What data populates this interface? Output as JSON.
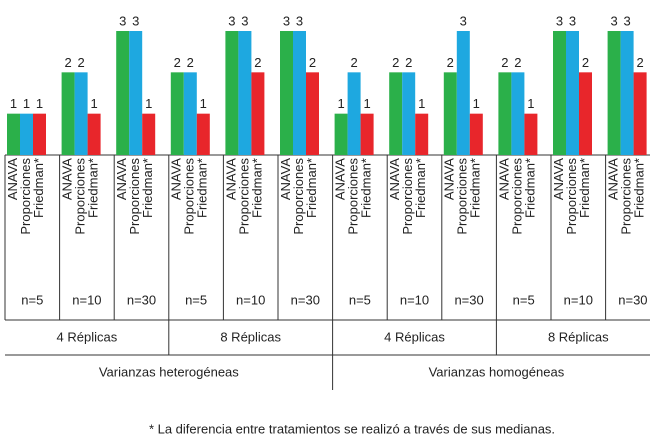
{
  "chart_data": {
    "type": "bar",
    "categories": [
      "n=5",
      "n=10",
      "n=30",
      "n=5",
      "n=10",
      "n=30",
      "n=5",
      "n=10",
      "n=30",
      "n=5",
      "n=10",
      "n=30"
    ],
    "replicas": [
      "4 Réplicas",
      "8 Réplicas",
      "4 Réplicas",
      "8 Réplicas"
    ],
    "variances": [
      "Varianzas heterogéneas",
      "Varianzas homogéneas"
    ],
    "series": [
      {
        "name": "ANAVA",
        "color": "#2bb04a",
        "values": [
          1,
          2,
          3,
          2,
          3,
          3,
          1,
          2,
          2,
          2,
          3,
          3
        ]
      },
      {
        "name": "Proporciones",
        "color": "#1ea8e0",
        "values": [
          1,
          2,
          3,
          2,
          3,
          3,
          2,
          2,
          3,
          2,
          3,
          3
        ]
      },
      {
        "name": "Friedman*",
        "color": "#e8262b",
        "values": [
          1,
          1,
          1,
          1,
          2,
          2,
          1,
          1,
          1,
          1,
          2,
          2
        ]
      }
    ],
    "footnote": "* La diferencia entre tratamientos se realizó a través de sus medianas."
  }
}
